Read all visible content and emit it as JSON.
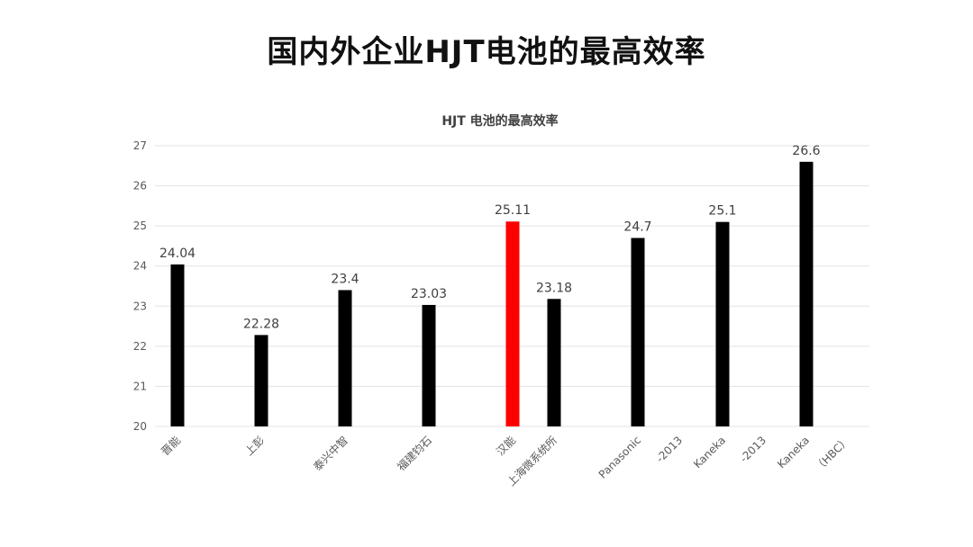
{
  "page_title": "国内外企业HJT电池的最高效率",
  "chart_data": {
    "type": "bar",
    "title": "HJT 电池的最高效率",
    "xlabel": "",
    "ylabel": "",
    "ylim": [
      20,
      27
    ],
    "yticks": [
      "20",
      "21",
      "22",
      "23",
      "24",
      "25",
      "26",
      "27"
    ],
    "grid": true,
    "legend": "none",
    "bar_color": "#000000",
    "highlight_color": "#ff0000",
    "bars": [
      {
        "label": "晋能",
        "value": 24.04,
        "value_label": "24.04",
        "highlight": false
      },
      {
        "label": "上彭",
        "value": 22.28,
        "value_label": "22.28",
        "highlight": false
      },
      {
        "label": "泰兴中智",
        "value": 23.4,
        "value_label": "23.4",
        "highlight": false
      },
      {
        "label": "福建钧石",
        "value": 23.03,
        "value_label": "23.03",
        "highlight": false
      },
      {
        "label": "汉能",
        "value": 25.11,
        "value_label": "25.11",
        "highlight": true
      },
      {
        "label": "上海微系统所",
        "value": 23.18,
        "value_label": "23.18",
        "highlight": false
      },
      {
        "label": "Panasonic",
        "value": 24.7,
        "value_label": "24.7",
        "highlight": false
      },
      {
        "label": "Kaneka",
        "value": 25.1,
        "value_label": "25.1",
        "highlight": false
      },
      {
        "label": "Kaneka",
        "value": 26.6,
        "value_label": "26.6",
        "highlight": false
      }
    ],
    "extra_x_labels": [
      "-2013",
      "-2013",
      "（HBC）"
    ]
  }
}
